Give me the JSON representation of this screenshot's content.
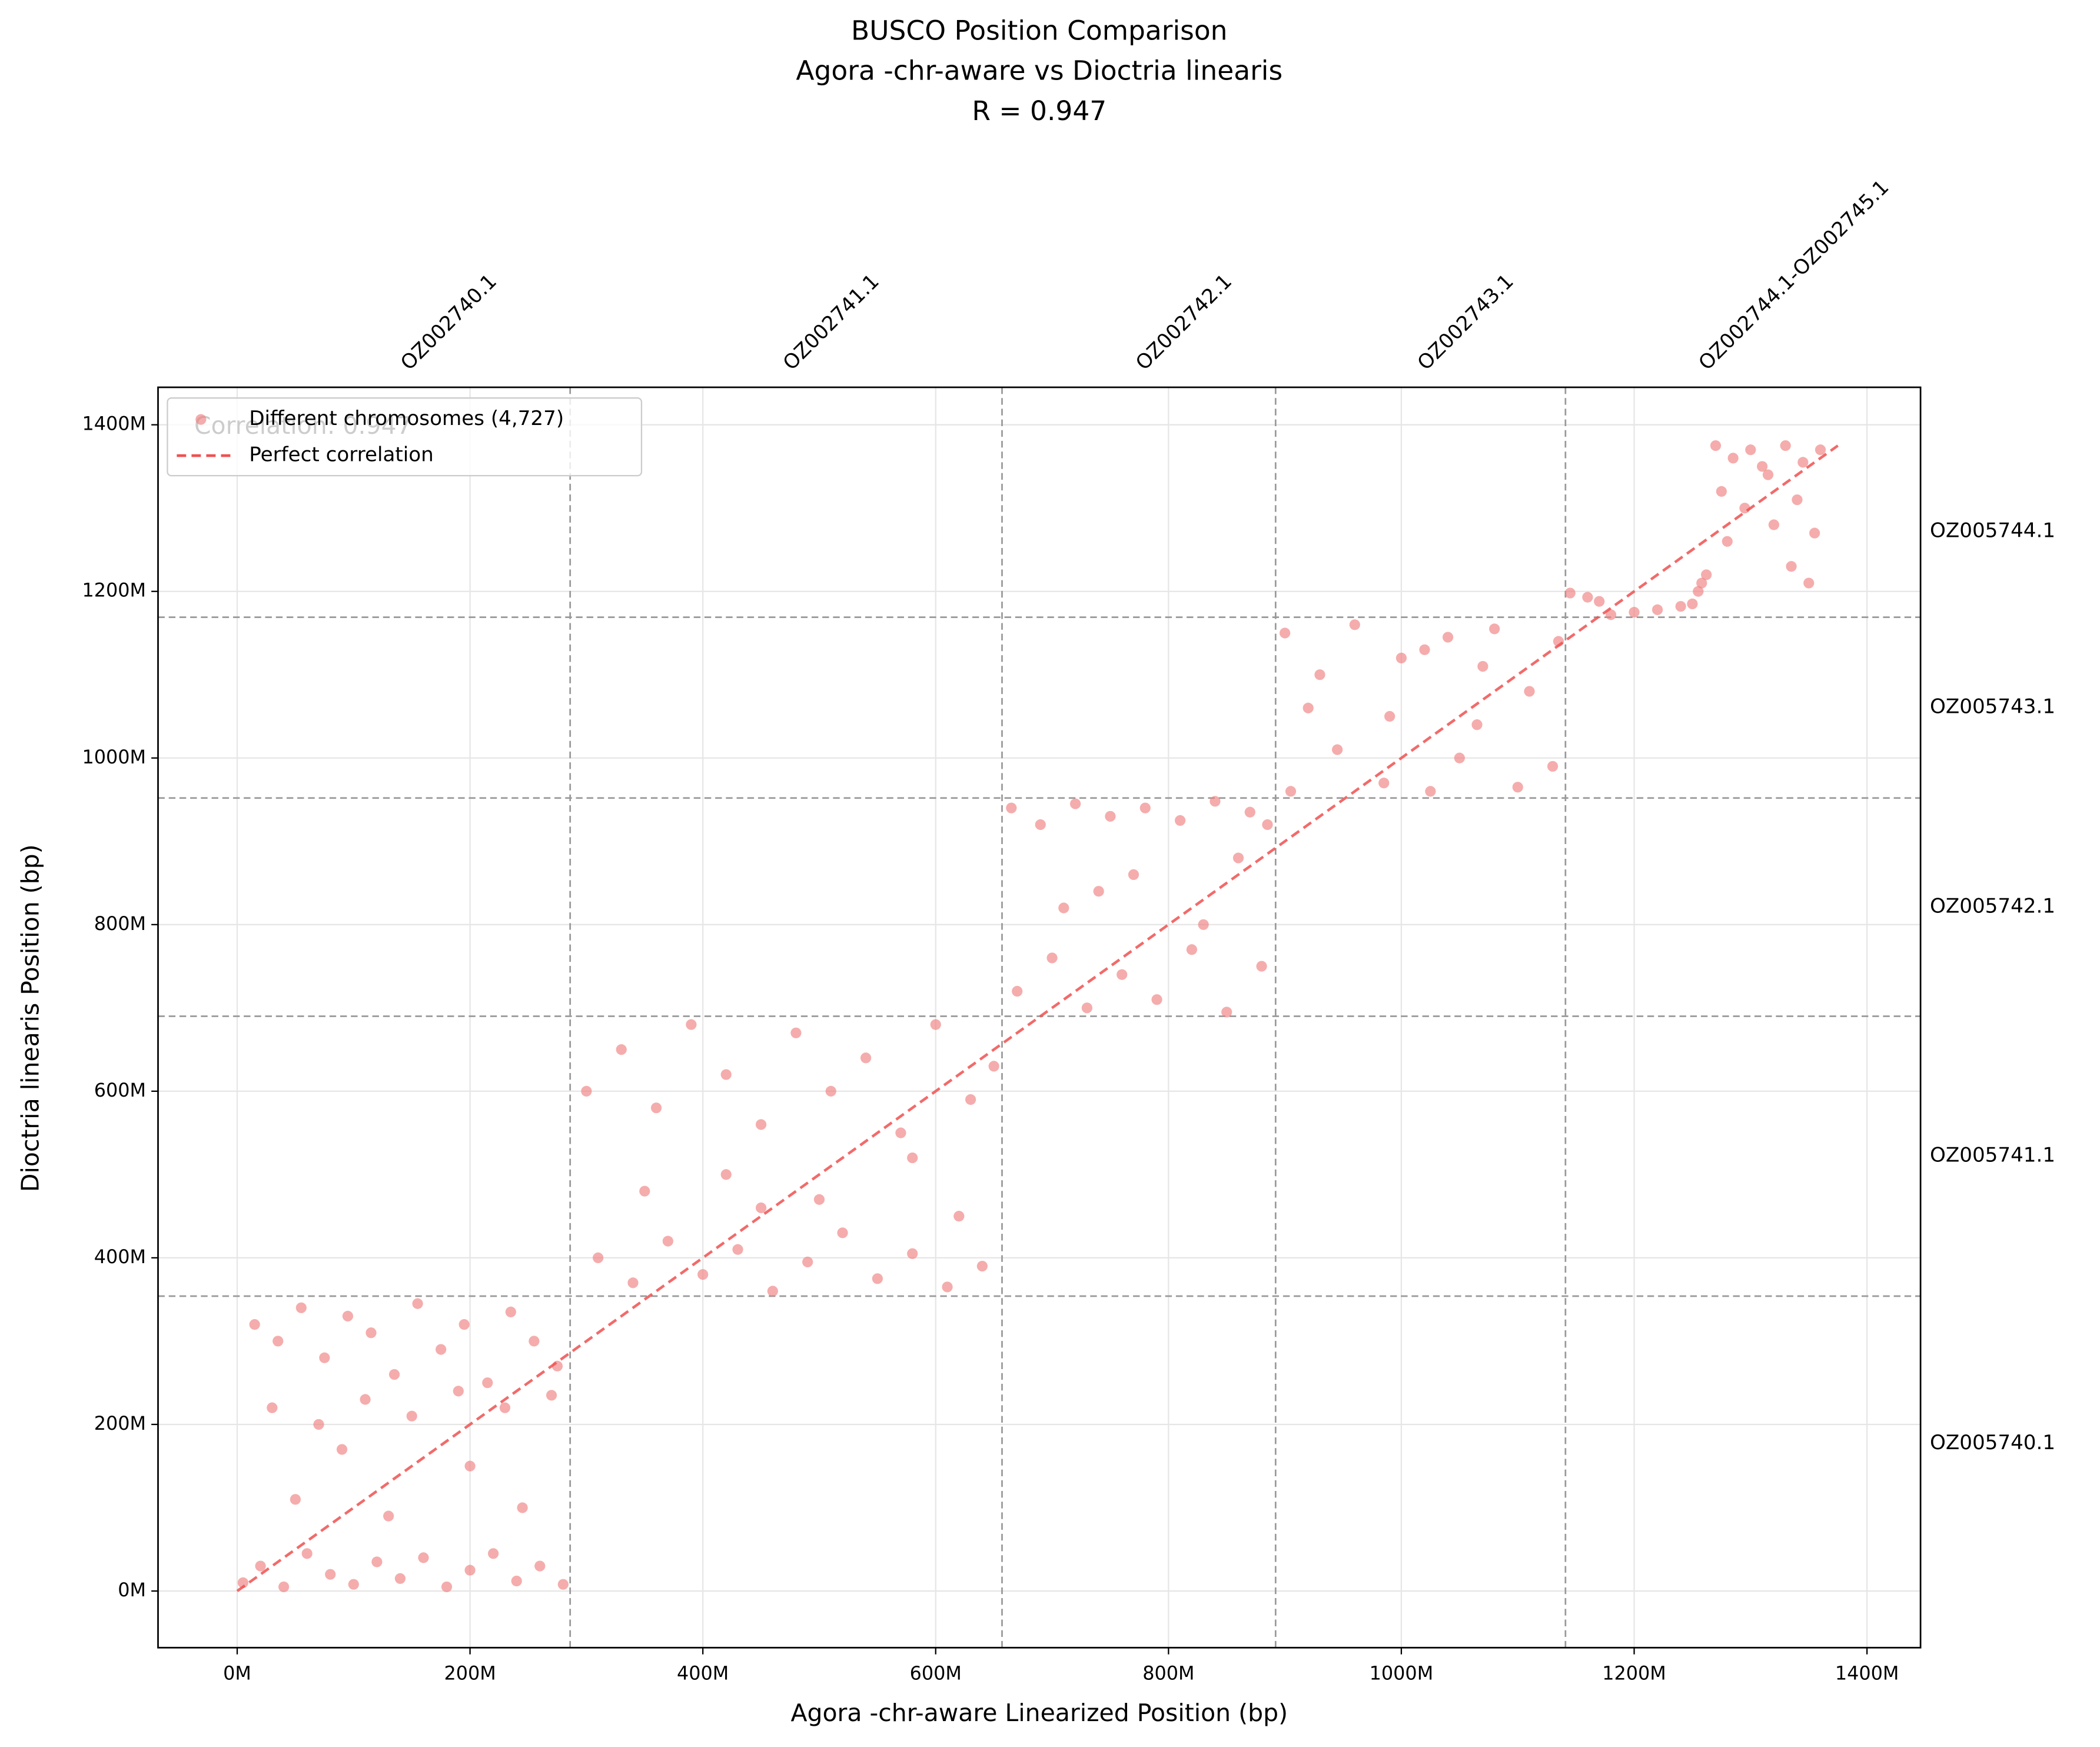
{
  "chart_data": {
    "type": "scatter",
    "title": "BUSCO Position Comparison",
    "subtitle": "Agora -chr-aware  vs Dioctria linearis",
    "subtitle2": "R = 0.947",
    "annotation": "Correlation: 0.947",
    "xlabel": "Agora -chr-aware  Linearized Position (bp)",
    "ylabel": "Dioctria linearis Position (bp)",
    "xlim": [
      -68,
      1446
    ],
    "ylim": [
      -68,
      1445
    ],
    "xticks": [
      {
        "value": 0,
        "label": "0M"
      },
      {
        "value": 200,
        "label": "200M"
      },
      {
        "value": 400,
        "label": "400M"
      },
      {
        "value": 600,
        "label": "600M"
      },
      {
        "value": 800,
        "label": "800M"
      },
      {
        "value": 1000,
        "label": "1000M"
      },
      {
        "value": 1200,
        "label": "1200M"
      },
      {
        "value": 1400,
        "label": "1400M"
      }
    ],
    "yticks": [
      {
        "value": 0,
        "label": "0M"
      },
      {
        "value": 200,
        "label": "200M"
      },
      {
        "value": 400,
        "label": "400M"
      },
      {
        "value": 600,
        "label": "600M"
      },
      {
        "value": 800,
        "label": "800M"
      },
      {
        "value": 1000,
        "label": "1000M"
      },
      {
        "value": 1200,
        "label": "1200M"
      },
      {
        "value": 1400,
        "label": "1400M"
      }
    ],
    "grid": true,
    "legend": "upper left",
    "x_chromosomes": [
      "OZ002740.1",
      "OZ002741.1",
      "OZ002742.1",
      "OZ002743.1",
      "OZ002744.1-OZ002745.1"
    ],
    "x_chrom_ends": [
      286,
      657,
      892,
      1141,
      1375
    ],
    "y_chromosomes": [
      "OZ005740.1",
      "OZ005741.1",
      "OZ005742.1",
      "OZ005743.1",
      "OZ005744.1"
    ],
    "y_chrom_ends": [
      354,
      690,
      952,
      1169,
      1375
    ],
    "series": [
      {
        "name": "Different chromosomes (4,727)",
        "color": "#f08080",
        "kind": "scatter",
        "x": [
          5,
          20,
          40,
          60,
          80,
          100,
          120,
          140,
          160,
          180,
          200,
          220,
          240,
          260,
          280,
          15,
          35,
          55,
          75,
          95,
          115,
          135,
          155,
          175,
          195,
          215,
          235,
          255,
          275,
          30,
          70,
          110,
          150,
          190,
          230,
          270,
          50,
          130,
          200,
          90,
          245,
          300,
          330,
          360,
          390,
          420,
          450,
          480,
          510,
          540,
          570,
          600,
          630,
          650,
          310,
          340,
          370,
          400,
          430,
          460,
          490,
          520,
          550,
          580,
          610,
          640,
          350,
          420,
          500,
          580,
          620,
          450,
          665,
          690,
          720,
          750,
          780,
          810,
          840,
          870,
          885,
          670,
          700,
          730,
          760,
          790,
          820,
          850,
          880,
          710,
          770,
          830,
          860,
          740,
          900,
          930,
          960,
          990,
          1020,
          1050,
          1080,
          1110,
          1135,
          905,
          945,
          985,
          1025,
          1065,
          1100,
          1130,
          920,
          1000,
          1070,
          1040,
          1145,
          1160,
          1170,
          1180,
          1200,
          1220,
          1240,
          1250,
          1255,
          1258,
          1262,
          1270,
          1285,
          1300,
          1315,
          1330,
          1345,
          1360,
          1275,
          1295,
          1320,
          1340,
          1355,
          1280,
          1335,
          1350,
          1310
        ],
        "values": [
          10,
          30,
          5,
          45,
          20,
          8,
          35,
          15,
          40,
          5,
          25,
          45,
          12,
          30,
          8,
          320,
          300,
          340,
          280,
          330,
          310,
          260,
          345,
          290,
          320,
          250,
          335,
          300,
          270,
          220,
          200,
          230,
          210,
          240,
          220,
          235,
          110,
          90,
          150,
          170,
          100,
          600,
          650,
          580,
          680,
          620,
          560,
          670,
          600,
          640,
          550,
          680,
          590,
          630,
          400,
          370,
          420,
          380,
          410,
          360,
          395,
          430,
          375,
          405,
          365,
          390,
          480,
          500,
          470,
          520,
          450,
          460,
          940,
          920,
          945,
          930,
          940,
          925,
          948,
          935,
          920,
          720,
          760,
          700,
          740,
          710,
          770,
          695,
          750,
          820,
          860,
          800,
          880,
          840,
          1150,
          1100,
          1160,
          1050,
          1130,
          1000,
          1155,
          1080,
          1140,
          960,
          1010,
          970,
          960,
          1040,
          965,
          990,
          1060,
          1120,
          1110,
          1145,
          1198,
          1193,
          1188,
          1172,
          1175,
          1178,
          1182,
          1185,
          1200,
          1210,
          1220,
          1375,
          1360,
          1370,
          1340,
          1375,
          1355,
          1370,
          1320,
          1300,
          1280,
          1310,
          1270,
          1260,
          1230,
          1210,
          1350
        ]
      },
      {
        "name": "Perfect correlation",
        "color": "#f05050",
        "kind": "line",
        "x": [
          0,
          1375
        ],
        "values": [
          0,
          1375
        ]
      }
    ]
  }
}
